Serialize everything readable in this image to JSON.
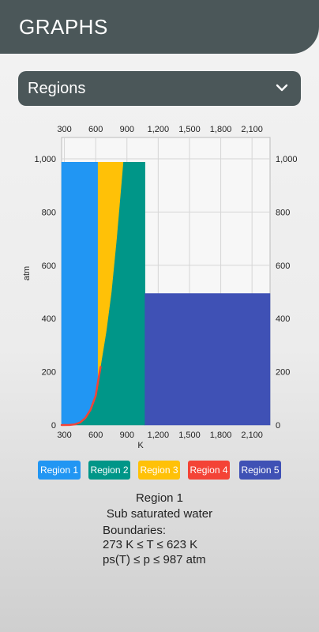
{
  "header": {
    "title": "GRAPHS"
  },
  "selector": {
    "selected": "Regions",
    "icon": "chevron-down-icon"
  },
  "chart_data": {
    "type": "area",
    "xlabel": "K",
    "ylabel": "atm",
    "xlim": [
      273,
      2273
    ],
    "ylim": [
      0,
      1080
    ],
    "xticks": [
      "300",
      "600",
      "900",
      "1,200",
      "1,500",
      "1,800",
      "2,100"
    ],
    "xtick_values": [
      300,
      600,
      900,
      1200,
      1500,
      1800,
      2100
    ],
    "yticks": [
      "0",
      "200",
      "400",
      "600",
      "800",
      "1,000"
    ],
    "ytick_values": [
      0,
      200,
      400,
      600,
      800,
      1000
    ],
    "grid": true,
    "series": [
      {
        "name": "Region 1",
        "color": "#2196f3",
        "polygon": [
          [
            273,
            0
          ],
          [
            273,
            987
          ],
          [
            623,
            987
          ],
          [
            623,
            164
          ],
          [
            600,
            110
          ],
          [
            550,
            57
          ],
          [
            500,
            26
          ],
          [
            450,
            9.4
          ],
          [
            400,
            2.4
          ],
          [
            350,
            0.4
          ],
          [
            273,
            0
          ]
        ]
      },
      {
        "name": "Region 2",
        "color": "#009688",
        "polygon": [
          [
            273,
            0
          ],
          [
            350,
            0.4
          ],
          [
            400,
            2.4
          ],
          [
            450,
            9.4
          ],
          [
            500,
            26
          ],
          [
            550,
            57
          ],
          [
            600,
            110
          ],
          [
            623,
            164
          ],
          [
            650,
            250
          ],
          [
            700,
            440
          ],
          [
            750,
            700
          ],
          [
            800,
            987
          ],
          [
            1073,
            987
          ],
          [
            1073,
            0
          ]
        ]
      },
      {
        "name": "Region 3",
        "color": "#ffc107",
        "polygon": [
          [
            623,
            164
          ],
          [
            623,
            987
          ],
          [
            863,
            987
          ],
          [
            800,
            700
          ],
          [
            750,
            500
          ],
          [
            700,
            350
          ],
          [
            650,
            230
          ],
          [
            623,
            164
          ]
        ]
      },
      {
        "name": "Region 4",
        "color": "#f44336",
        "line": [
          [
            273,
            0
          ],
          [
            350,
            0.4
          ],
          [
            400,
            2.4
          ],
          [
            450,
            9.4
          ],
          [
            500,
            26
          ],
          [
            550,
            57
          ],
          [
            600,
            110
          ],
          [
            623,
            164
          ],
          [
            647,
            218
          ]
        ]
      },
      {
        "name": "Region 5",
        "color": "#3f51b5",
        "polygon": [
          [
            1073,
            0
          ],
          [
            1073,
            494
          ],
          [
            2273,
            494
          ],
          [
            2273,
            0
          ]
        ]
      }
    ]
  },
  "legend": {
    "items": [
      {
        "label": "Region 1",
        "color": "#2196f3"
      },
      {
        "label": "Region 2",
        "color": "#009688"
      },
      {
        "label": "Region 3",
        "color": "#ffc107"
      },
      {
        "label": "Region 4",
        "color": "#f44336"
      },
      {
        "label": "Region 5",
        "color": "#3f51b5"
      }
    ]
  },
  "info": {
    "title": "Region 1",
    "subtitle": "Sub saturated water",
    "boundaries_label": "Boundaries:",
    "line1": "273 K  ≤ T ≤  623 K",
    "line2": "ps(T)  ≤ p ≤  987 atm"
  }
}
